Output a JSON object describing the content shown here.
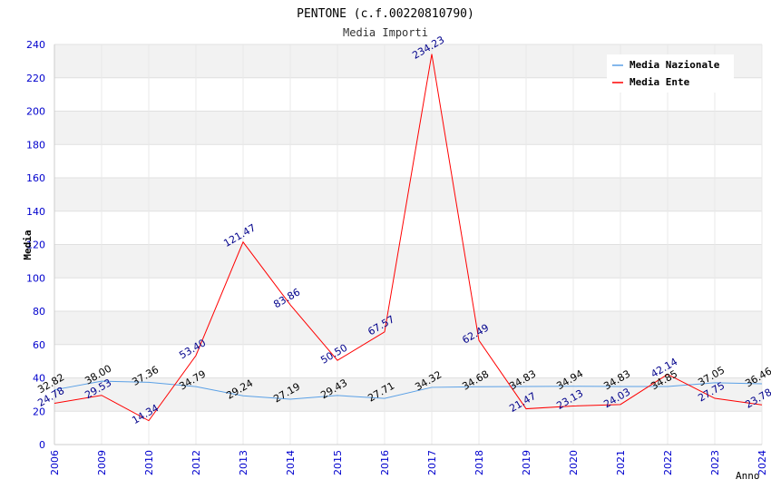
{
  "chart_data": {
    "type": "line",
    "title": "PENTONE (c.f.00220810790)",
    "subtitle": "Media Importi",
    "xlabel": "Anno",
    "ylabel": "Media",
    "categories": [
      "2006",
      "2009",
      "2010",
      "2012",
      "2013",
      "2014",
      "2015",
      "2016",
      "2017",
      "2018",
      "2019",
      "2020",
      "2021",
      "2022",
      "2023",
      "2024"
    ],
    "series": [
      {
        "name": "Media Nazionale",
        "color": "#5aa0e6",
        "label_color": "#000000",
        "values": [
          32.82,
          38.0,
          37.36,
          34.79,
          29.24,
          27.19,
          29.43,
          27.71,
          34.32,
          34.68,
          34.83,
          34.94,
          34.83,
          34.85,
          37.05,
          36.46
        ],
        "labels": [
          "32.82",
          "38.00",
          "37.36",
          "34.79",
          "29.24",
          "27.19",
          "29.43",
          "27.71",
          "34.32",
          "34.68",
          "34.83",
          "34.94",
          "34.83",
          "34.85",
          "37.05",
          "36.46"
        ]
      },
      {
        "name": "Media Ente",
        "color": "#ff0000",
        "label_color": "#00008b",
        "values": [
          24.78,
          29.53,
          14.34,
          53.4,
          121.47,
          83.86,
          50.5,
          67.57,
          234.23,
          62.49,
          21.47,
          23.13,
          24.03,
          42.14,
          27.75,
          23.78
        ],
        "labels": [
          "24.78",
          "29.53",
          "14.34",
          "53.40",
          "121.47",
          "83.86",
          "50.50",
          "67.57",
          "234.23",
          "62.49",
          "21.47",
          "23.13",
          "24.03",
          "42.14",
          "27.75",
          "23.78"
        ]
      }
    ],
    "ylim": [
      0,
      240
    ],
    "yticks": [
      0,
      20,
      40,
      60,
      80,
      100,
      120,
      140,
      160,
      180,
      200,
      220,
      240
    ],
    "grid": true,
    "legend_position": "top-right",
    "tick_color": "#0000cd"
  }
}
